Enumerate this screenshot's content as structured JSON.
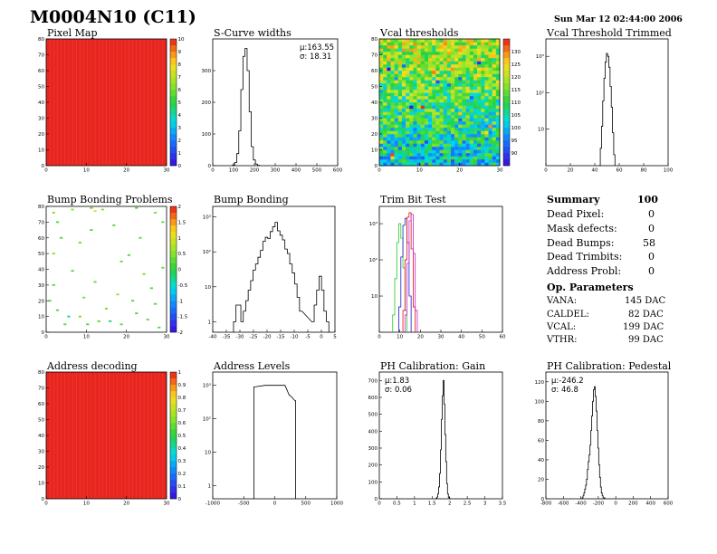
{
  "header": {
    "title": "M0004N10 (C11)",
    "timestamp": "Sun Mar 12 02:44:00 2006"
  },
  "colors": {
    "line": "#000000",
    "uniform_map": "#e8251f",
    "trim_green": "#22cc22",
    "trim_blue": "#1a1acc",
    "trim_red": "#dd1111",
    "trim_magenta": "#cc22cc"
  },
  "summary": {
    "title": "Summary",
    "total": "100",
    "rows": [
      {
        "label": "Dead Pixel:",
        "value": "0"
      },
      {
        "label": "Mask defects:",
        "value": "0"
      },
      {
        "label": "Dead Bumps:",
        "value": "58"
      },
      {
        "label": "Dead Trimbits:",
        "value": "0"
      },
      {
        "label": "Address Probl:",
        "value": "0"
      }
    ],
    "op_title": "Op. Parameters",
    "op_rows": [
      {
        "label": "VANA:",
        "value": "145 DAC"
      },
      {
        "label": "CALDEL:",
        "value": "82 DAC"
      },
      {
        "label": "VCAL:",
        "value": "199 DAC"
      },
      {
        "label": "VTHR:",
        "value": "99 DAC"
      }
    ]
  },
  "chart_data": [
    {
      "id": "pixel-map",
      "type": "heatmap",
      "title": "Pixel Map",
      "xlim": [
        0,
        32
      ],
      "ylim": [
        0,
        80
      ],
      "xticks": [
        "0",
        "10",
        "20",
        "30"
      ],
      "yticks": [
        "0",
        "10",
        "20",
        "30",
        "40",
        "50",
        "60",
        "70",
        "80"
      ],
      "zlim": [
        0,
        10
      ],
      "zticks": [
        "0",
        "1",
        "2",
        "3",
        "4",
        "5",
        "6",
        "7",
        "8",
        "9",
        "10"
      ],
      "uniform_value": 10
    },
    {
      "id": "scurve-widths",
      "type": "bar",
      "title": "S-Curve widths",
      "xlim": [
        0,
        600
      ],
      "ylim": [
        0,
        400
      ],
      "xticks": [
        "0",
        "100",
        "200",
        "300",
        "400",
        "500",
        "600"
      ],
      "yticks": [
        "0",
        "100",
        "200",
        "300"
      ],
      "stats": [
        "μ:163.55",
        "σ: 18.31"
      ],
      "bin_width": 10,
      "x": [
        100,
        110,
        120,
        130,
        140,
        150,
        160,
        170,
        180,
        190,
        200,
        210,
        220
      ],
      "values": [
        2,
        10,
        38,
        110,
        240,
        345,
        370,
        300,
        170,
        60,
        18,
        5,
        1
      ]
    },
    {
      "id": "vcal-thresholds",
      "type": "heatmap",
      "title": "Vcal thresholds",
      "xlim": [
        0,
        32
      ],
      "ylim": [
        0,
        80
      ],
      "xticks": [
        "0",
        "10",
        "20",
        "30"
      ],
      "yticks": [
        "0",
        "10",
        "20",
        "30",
        "40",
        "50",
        "60",
        "70",
        "80"
      ],
      "zlim": [
        85,
        135
      ],
      "zticks": [
        "90",
        "95",
        "100",
        "105",
        "110",
        "115",
        "120",
        "125",
        "130"
      ]
    },
    {
      "id": "vcal-threshold-trimmed",
      "type": "bar",
      "title": "Vcal Threshold Trimmed",
      "xlim": [
        0,
        100
      ],
      "log_y": true,
      "ylim": [
        1,
        3000
      ],
      "xticks": [
        "0",
        "20",
        "40",
        "60",
        "80",
        "100"
      ],
      "yticks": [
        "10",
        "10²",
        "10³"
      ],
      "bin_width": 1,
      "x": [
        44,
        45,
        46,
        47,
        48,
        49,
        50,
        51,
        52,
        53,
        54,
        55,
        56
      ],
      "values": [
        1,
        3,
        12,
        60,
        250,
        700,
        1200,
        1000,
        500,
        150,
        40,
        8,
        2
      ]
    },
    {
      "id": "bump-bonding-problems",
      "type": "scatter",
      "title": "Bump Bonding Problems",
      "xlim": [
        0,
        32
      ],
      "ylim": [
        0,
        80
      ],
      "xticks": [
        "0",
        "10",
        "20",
        "30"
      ],
      "yticks": [
        "0",
        "10",
        "20",
        "30",
        "40",
        "50",
        "60",
        "70",
        "80"
      ],
      "zlim": [
        -2,
        2
      ],
      "zticks": [
        "-2",
        "-1.5",
        "-1",
        "-0.5",
        "0",
        "0.5",
        "1",
        "1.5",
        "2"
      ],
      "points": [
        [
          2,
          76,
          0.5
        ],
        [
          3,
          70,
          0.2
        ],
        [
          7,
          78,
          0.5
        ],
        [
          12,
          79,
          0.3
        ],
        [
          13,
          77,
          1.0
        ],
        [
          15,
          78,
          0.5
        ],
        [
          24,
          79,
          0.2
        ],
        [
          29,
          76,
          0.4
        ],
        [
          12,
          65,
          0.2
        ],
        [
          9,
          57,
          0.3
        ],
        [
          2,
          50,
          0.5
        ],
        [
          22,
          49,
          0.2
        ],
        [
          20,
          45,
          0.3
        ],
        [
          7,
          39,
          0.2
        ],
        [
          26,
          37,
          0.4
        ],
        [
          31,
          41,
          0.3
        ],
        [
          2,
          30,
          0.2
        ],
        [
          13,
          32,
          0.3
        ],
        [
          19,
          24,
          0.5
        ],
        [
          28,
          28,
          0.2
        ],
        [
          23,
          20,
          0.2
        ],
        [
          3,
          14,
          0.2
        ],
        [
          6,
          10,
          -0.3
        ],
        [
          9,
          10,
          0.4
        ],
        [
          14,
          7,
          0.2
        ],
        [
          17,
          7,
          -0.2
        ],
        [
          20,
          5,
          0.3
        ],
        [
          24,
          12,
          0.2
        ],
        [
          11,
          5,
          0.2
        ],
        [
          16,
          15,
          0.4
        ],
        [
          27,
          8,
          0.3
        ],
        [
          30,
          3,
          0.2
        ],
        [
          5,
          5,
          0.3
        ],
        [
          1,
          20,
          0.2
        ],
        [
          10,
          22,
          0.4
        ],
        [
          4,
          60,
          0.2
        ],
        [
          25,
          60,
          0.3
        ],
        [
          18,
          68,
          0.2
        ],
        [
          31,
          70,
          0.3
        ],
        [
          29,
          18,
          0.2
        ]
      ]
    },
    {
      "id": "bump-bonding",
      "type": "bar",
      "title": "Bump Bonding",
      "xlim": [
        -45,
        5
      ],
      "log_y": true,
      "ylim": [
        0.5,
        2000
      ],
      "xticks": [
        "-40",
        "-35",
        "-30",
        "-25",
        "-20",
        "-15",
        "-10",
        "-5",
        "0",
        "5"
      ],
      "yticks": [
        "1",
        "10",
        "10²",
        "10³"
      ],
      "bin_width": 1,
      "x": [
        -36,
        -35,
        -34,
        -33,
        -32,
        -31,
        -30,
        -29,
        -28,
        -27,
        -26,
        -25,
        -24,
        -23,
        -22,
        -21,
        -20,
        -19,
        -18,
        -17,
        -16,
        -15,
        -14,
        -13,
        -12,
        -11,
        -10,
        -9,
        -4,
        -3,
        -2,
        -1,
        0,
        1,
        2
      ],
      "values": [
        1,
        3,
        3,
        1,
        2,
        4,
        8,
        15,
        30,
        45,
        70,
        110,
        200,
        260,
        240,
        380,
        520,
        700,
        400,
        300,
        220,
        120,
        90,
        45,
        25,
        12,
        5,
        2,
        1,
        3,
        8,
        20,
        8,
        2,
        1
      ]
    },
    {
      "id": "trim-bit-test",
      "type": "line",
      "title": "Trim Bit Test",
      "xlim": [
        0,
        60
      ],
      "log_y": true,
      "ylim": [
        1,
        3000
      ],
      "xticks": [
        "0",
        "10",
        "20",
        "30",
        "40",
        "50",
        "60"
      ],
      "yticks": [
        "10",
        "10²",
        "10³"
      ],
      "series": [
        {
          "color": "#22cc22",
          "x": [
            7,
            8,
            9,
            10,
            11,
            12,
            13
          ],
          "values": [
            3,
            30,
            300,
            1000,
            400,
            60,
            4
          ]
        },
        {
          "color": "#1a1acc",
          "x": [
            10,
            11,
            12,
            13,
            14,
            15
          ],
          "values": [
            5,
            120,
            900,
            1400,
            300,
            10
          ]
        },
        {
          "color": "#dd1111",
          "x": [
            12,
            13,
            14,
            15,
            16,
            17
          ],
          "values": [
            4,
            100,
            1500,
            2000,
            200,
            5
          ]
        },
        {
          "color": "#cc22cc",
          "x": [
            13,
            14,
            15,
            16,
            17,
            18
          ],
          "values": [
            3,
            80,
            1200,
            1800,
            150,
            4
          ]
        }
      ]
    },
    {
      "id": "address-decoding",
      "type": "heatmap",
      "title": "Address decoding",
      "xlim": [
        0,
        32
      ],
      "ylim": [
        0,
        80
      ],
      "xticks": [
        "0",
        "10",
        "20",
        "30"
      ],
      "yticks": [
        "0",
        "10",
        "20",
        "30",
        "40",
        "50",
        "60",
        "70",
        "80"
      ],
      "zlim": [
        0,
        1
      ],
      "zticks": [
        "0",
        "0.1",
        "0.2",
        "0.3",
        "0.4",
        "0.5",
        "0.6",
        "0.7",
        "0.8",
        "0.9",
        "1"
      ],
      "uniform_value": 1
    },
    {
      "id": "address-levels",
      "type": "bar",
      "title": "Address Levels",
      "xlim": [
        -1000,
        1000
      ],
      "log_y": true,
      "ylim": [
        0.4,
        2500
      ],
      "xticks": [
        "-1000",
        "-500",
        "0",
        "500",
        "1000"
      ],
      "yticks": [
        "1",
        "10",
        "10²",
        "10³"
      ],
      "bin_width": 12,
      "x": [
        -330,
        -150,
        -30,
        70,
        160,
        240,
        330
      ],
      "values": [
        900,
        1000,
        1000,
        1000,
        1000,
        500,
        350
      ]
    },
    {
      "id": "ph-gain",
      "type": "bar",
      "title": "PH Calibration: Gain",
      "xlim": [
        0,
        3.5
      ],
      "ylim": [
        0,
        750
      ],
      "xticks": [
        "0",
        "0.5",
        "1",
        "1.5",
        "2",
        "2.5",
        "3",
        "3.5"
      ],
      "yticks": [
        "0",
        "100",
        "200",
        "300",
        "400",
        "500",
        "600",
        "700"
      ],
      "stats": [
        "μ:1.83",
        "σ: 0.06"
      ],
      "bin_width": 0.025,
      "x": [
        1.625,
        1.65,
        1.675,
        1.7,
        1.725,
        1.75,
        1.775,
        1.8,
        1.825,
        1.85,
        1.875,
        1.9,
        1.925,
        1.95,
        1.975,
        2.0
      ],
      "values": [
        3,
        10,
        30,
        70,
        150,
        290,
        470,
        610,
        700,
        560,
        380,
        220,
        90,
        30,
        8,
        2
      ]
    },
    {
      "id": "ph-pedestal",
      "type": "bar",
      "title": "PH Calibration: Pedestal",
      "xlim": [
        -800,
        600
      ],
      "ylim": [
        0,
        130
      ],
      "xticks": [
        "-800",
        "-600",
        "-400",
        "-200",
        "0",
        "200",
        "400",
        "600"
      ],
      "yticks": [
        "0",
        "20",
        "40",
        "60",
        "80",
        "100",
        "120"
      ],
      "stats": [
        "μ:-246.2",
        "σ: 46.8"
      ],
      "bin_width": 10,
      "x": [
        -380,
        -370,
        -360,
        -350,
        -340,
        -330,
        -320,
        -310,
        -300,
        -290,
        -280,
        -270,
        -260,
        -250,
        -240,
        -230,
        -220,
        -210,
        -200,
        -190,
        -180,
        -170,
        -160,
        -150,
        -140,
        -130
      ],
      "values": [
        1,
        3,
        6,
        10,
        14,
        20,
        30,
        38,
        45,
        55,
        70,
        85,
        100,
        112,
        115,
        105,
        90,
        70,
        52,
        35,
        22,
        12,
        6,
        3,
        1,
        1
      ]
    }
  ]
}
